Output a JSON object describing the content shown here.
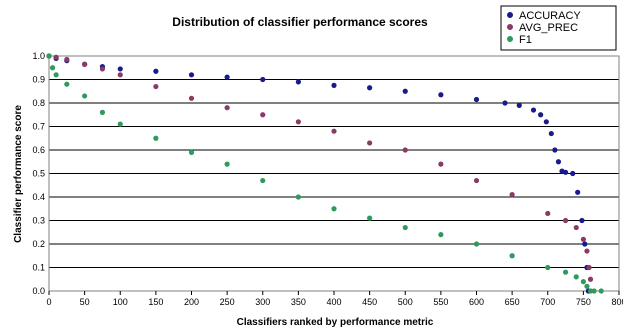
{
  "chart_data": {
    "type": "scatter",
    "title": "Distribution of classifier performance scores",
    "xlabel": "Classifiers ranked by performance metric",
    "ylabel": "Classifier performance score",
    "xlim": [
      0,
      800
    ],
    "ylim": [
      0,
      1
    ],
    "x_ticks": [
      0,
      50,
      100,
      150,
      200,
      250,
      300,
      350,
      400,
      450,
      500,
      550,
      600,
      650,
      700,
      750,
      800
    ],
    "y_ticks": [
      0,
      0.1,
      0.2,
      0.3,
      0.4,
      0.5,
      0.6,
      0.7,
      0.8,
      0.9,
      1
    ],
    "grid": "horizontal",
    "legend_position": "top-right",
    "series": [
      {
        "name": "ACCURACY",
        "color": "#1a1a8c",
        "x": [
          0,
          10,
          25,
          50,
          75,
          100,
          150,
          200,
          250,
          300,
          350,
          400,
          450,
          500,
          550,
          600,
          640,
          660,
          680,
          690,
          698,
          705,
          710,
          715,
          720,
          725,
          735,
          742,
          748,
          752,
          755,
          757
        ],
        "y": [
          1.0,
          0.99,
          0.98,
          0.965,
          0.955,
          0.945,
          0.935,
          0.92,
          0.91,
          0.9,
          0.89,
          0.875,
          0.865,
          0.85,
          0.835,
          0.815,
          0.8,
          0.79,
          0.77,
          0.75,
          0.72,
          0.67,
          0.6,
          0.55,
          0.51,
          0.505,
          0.5,
          0.42,
          0.3,
          0.2,
          0.1,
          0.0
        ]
      },
      {
        "name": "AVG_PREC",
        "color": "#8b3a66",
        "x": [
          0,
          10,
          25,
          50,
          75,
          100,
          150,
          200,
          250,
          300,
          350,
          400,
          450,
          500,
          550,
          600,
          650,
          700,
          725,
          740,
          750,
          755,
          758,
          760
        ],
        "y": [
          1.0,
          0.995,
          0.985,
          0.965,
          0.945,
          0.92,
          0.87,
          0.82,
          0.78,
          0.75,
          0.72,
          0.68,
          0.63,
          0.6,
          0.54,
          0.47,
          0.41,
          0.33,
          0.3,
          0.27,
          0.22,
          0.17,
          0.1,
          0.05
        ]
      },
      {
        "name": "F1",
        "color": "#2e9a5e",
        "x": [
          0,
          5,
          10,
          25,
          50,
          75,
          100,
          150,
          200,
          250,
          300,
          350,
          400,
          450,
          500,
          550,
          600,
          650,
          700,
          725,
          740,
          750,
          755,
          760,
          765,
          775
        ],
        "y": [
          1.0,
          0.95,
          0.92,
          0.88,
          0.83,
          0.76,
          0.71,
          0.65,
          0.59,
          0.54,
          0.47,
          0.4,
          0.35,
          0.31,
          0.27,
          0.24,
          0.2,
          0.15,
          0.1,
          0.08,
          0.06,
          0.04,
          0.02,
          0.0,
          0.0,
          0.0
        ]
      }
    ]
  }
}
